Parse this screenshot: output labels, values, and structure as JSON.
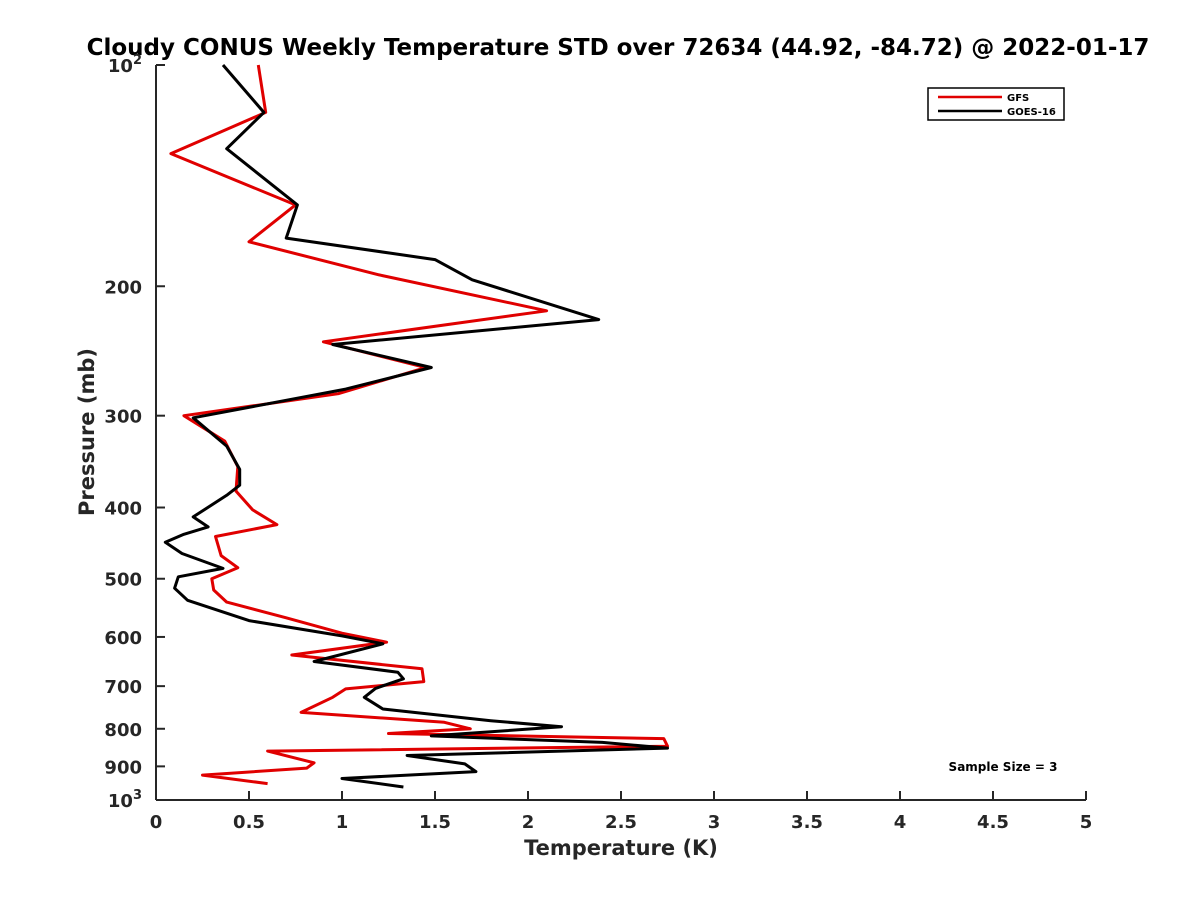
{
  "chart_data": {
    "type": "line",
    "title": "Cloudy CONUS Weekly Temperature STD over 72634 (44.92, -84.72) @ 2022-01-17",
    "xlabel": "Temperature (K)",
    "ylabel": "Pressure (mb)",
    "xlim": [
      0,
      5
    ],
    "ylim": [
      100,
      1000
    ],
    "y_scale": "log",
    "y_reversed": true,
    "x_ticks": [
      "0",
      "0.5",
      "1",
      "1.5",
      "2",
      "2.5",
      "3",
      "3.5",
      "4",
      "4.5",
      "5"
    ],
    "y_ticks": [
      {
        "value": 100,
        "base": "10",
        "exp": "2"
      },
      {
        "value": 200,
        "label": "200"
      },
      {
        "value": 300,
        "label": "300"
      },
      {
        "value": 400,
        "label": "400"
      },
      {
        "value": 500,
        "label": "500"
      },
      {
        "value": 600,
        "label": "600"
      },
      {
        "value": 700,
        "label": "700"
      },
      {
        "value": 800,
        "label": "800"
      },
      {
        "value": 900,
        "label": "900"
      },
      {
        "value": 1000,
        "base": "10",
        "exp": "3"
      }
    ],
    "legend_position": "top-right",
    "grid": false,
    "annotation": "Sample Size = 3",
    "series": [
      {
        "name": "GFS",
        "color": "#e00000",
        "points": [
          [
            0.55,
            100
          ],
          [
            0.59,
            116
          ],
          [
            0.08,
            132
          ],
          [
            0.75,
            155
          ],
          [
            0.5,
            174
          ],
          [
            1.2,
            193
          ],
          [
            2.1,
            216
          ],
          [
            0.9,
            238
          ],
          [
            1.45,
            258
          ],
          [
            0.98,
            280
          ],
          [
            0.15,
            300
          ],
          [
            0.37,
            325
          ],
          [
            0.44,
            352
          ],
          [
            0.43,
            380
          ],
          [
            0.52,
            403
          ],
          [
            0.65,
            422
          ],
          [
            0.32,
            438
          ],
          [
            0.35,
            465
          ],
          [
            0.44,
            483
          ],
          [
            0.3,
            500
          ],
          [
            0.31,
            518
          ],
          [
            0.38,
            538
          ],
          [
            0.7,
            565
          ],
          [
            1.0,
            593
          ],
          [
            1.24,
            610
          ],
          [
            0.73,
            635
          ],
          [
            1.43,
            663
          ],
          [
            1.44,
            690
          ],
          [
            1.02,
            706
          ],
          [
            0.95,
            725
          ],
          [
            0.78,
            760
          ],
          [
            1.55,
            784
          ],
          [
            1.69,
            800
          ],
          [
            1.25,
            812
          ],
          [
            2.73,
            825
          ],
          [
            2.75,
            845
          ],
          [
            0.6,
            858
          ],
          [
            0.85,
            890
          ],
          [
            0.81,
            905
          ],
          [
            0.25,
            925
          ],
          [
            0.6,
            950
          ]
        ]
      },
      {
        "name": "GOES-16",
        "color": "#000000",
        "points": [
          [
            0.36,
            100
          ],
          [
            0.58,
            116
          ],
          [
            0.38,
            130
          ],
          [
            0.76,
            155
          ],
          [
            0.7,
            172
          ],
          [
            1.5,
            184
          ],
          [
            1.7,
            196
          ],
          [
            2.38,
            222
          ],
          [
            0.95,
            240
          ],
          [
            1.48,
            258
          ],
          [
            1.02,
            276
          ],
          [
            0.2,
            302
          ],
          [
            0.38,
            330
          ],
          [
            0.45,
            355
          ],
          [
            0.45,
            373
          ],
          [
            0.38,
            385
          ],
          [
            0.2,
            412
          ],
          [
            0.28,
            425
          ],
          [
            0.15,
            435
          ],
          [
            0.05,
            446
          ],
          [
            0.14,
            462
          ],
          [
            0.36,
            484
          ],
          [
            0.12,
            497
          ],
          [
            0.1,
            515
          ],
          [
            0.17,
            535
          ],
          [
            0.5,
            570
          ],
          [
            1.0,
            598
          ],
          [
            1.22,
            613
          ],
          [
            0.85,
            648
          ],
          [
            1.3,
            670
          ],
          [
            1.33,
            684
          ],
          [
            1.18,
            705
          ],
          [
            1.12,
            725
          ],
          [
            1.22,
            752
          ],
          [
            1.8,
            780
          ],
          [
            2.18,
            795
          ],
          [
            1.48,
            818
          ],
          [
            2.4,
            835
          ],
          [
            2.75,
            850
          ],
          [
            1.35,
            870
          ],
          [
            1.66,
            893
          ],
          [
            1.72,
            915
          ],
          [
            1.0,
            935
          ],
          [
            1.33,
            960
          ]
        ]
      }
    ]
  }
}
